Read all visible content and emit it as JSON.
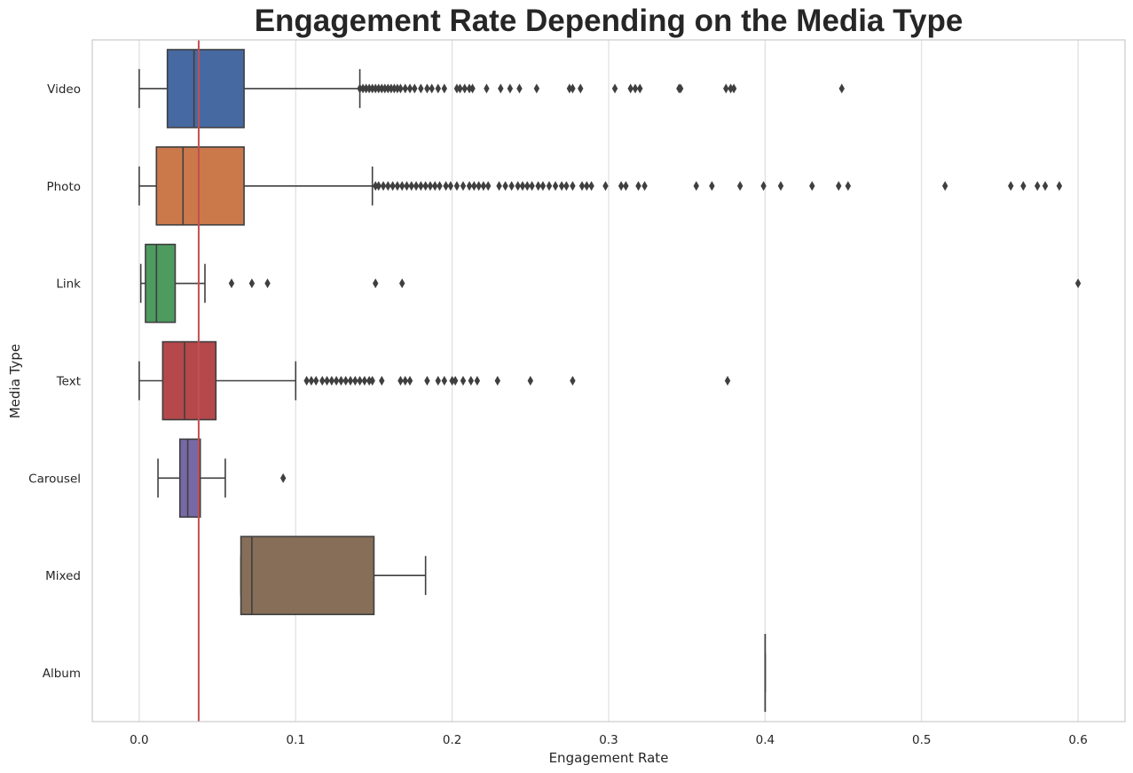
{
  "chart_data": {
    "type": "boxplot",
    "orientation": "horizontal",
    "title": "Engagement Rate Depending on the Media Type",
    "xlabel": "Engagement Rate",
    "ylabel": "Media Type",
    "xlim": [
      -0.03,
      0.63
    ],
    "xticks": [
      0.0,
      0.1,
      0.2,
      0.3,
      0.4,
      0.5,
      0.6
    ],
    "xtick_labels": [
      "0.0",
      "0.1",
      "0.2",
      "0.3",
      "0.4",
      "0.5",
      "0.6"
    ],
    "grid": "vertical",
    "reference_line": {
      "x": 0.038,
      "color": "#c44e52"
    },
    "categories": [
      "Video",
      "Photo",
      "Link",
      "Text",
      "Carousel",
      "Mixed",
      "Album"
    ],
    "series": [
      {
        "category": "Video",
        "color": "#4c72b0",
        "whisker_low": 0.0,
        "q1": 0.018,
        "median": 0.035,
        "q3": 0.067,
        "whisker_high": 0.141,
        "outliers": [
          0.141,
          0.143,
          0.145,
          0.147,
          0.149,
          0.151,
          0.153,
          0.155,
          0.157,
          0.159,
          0.161,
          0.163,
          0.165,
          0.167,
          0.17,
          0.173,
          0.176,
          0.18,
          0.184,
          0.187,
          0.191,
          0.195,
          0.203,
          0.205,
          0.208,
          0.211,
          0.213,
          0.222,
          0.231,
          0.237,
          0.243,
          0.254,
          0.275,
          0.277,
          0.282,
          0.304,
          0.314,
          0.317,
          0.32,
          0.345,
          0.346,
          0.375,
          0.378,
          0.38,
          0.449
        ]
      },
      {
        "category": "Photo",
        "color": "#dd8452",
        "whisker_low": 0.0,
        "q1": 0.011,
        "median": 0.028,
        "q3": 0.067,
        "whisker_high": 0.149,
        "outliers": [
          0.151,
          0.153,
          0.156,
          0.159,
          0.162,
          0.165,
          0.168,
          0.171,
          0.174,
          0.177,
          0.18,
          0.183,
          0.186,
          0.189,
          0.192,
          0.196,
          0.199,
          0.203,
          0.207,
          0.211,
          0.214,
          0.217,
          0.22,
          0.223,
          0.23,
          0.234,
          0.238,
          0.242,
          0.245,
          0.248,
          0.251,
          0.255,
          0.258,
          0.262,
          0.266,
          0.27,
          0.273,
          0.277,
          0.283,
          0.286,
          0.289,
          0.298,
          0.308,
          0.311,
          0.319,
          0.323,
          0.356,
          0.366,
          0.384,
          0.399,
          0.41,
          0.43,
          0.447,
          0.453,
          0.515,
          0.557,
          0.565,
          0.574,
          0.579,
          0.588
        ]
      },
      {
        "category": "Link",
        "color": "#55a868",
        "whisker_low": 0.001,
        "q1": 0.004,
        "median": 0.011,
        "q3": 0.023,
        "whisker_high": 0.042,
        "outliers": [
          0.059,
          0.072,
          0.082,
          0.151,
          0.168,
          0.6
        ]
      },
      {
        "category": "Text",
        "color": "#c44e52",
        "whisker_low": 0.0,
        "q1": 0.015,
        "median": 0.029,
        "q3": 0.049,
        "whisker_high": 0.1,
        "outliers": [
          0.107,
          0.11,
          0.113,
          0.117,
          0.12,
          0.123,
          0.126,
          0.129,
          0.132,
          0.135,
          0.138,
          0.141,
          0.144,
          0.147,
          0.149,
          0.155,
          0.167,
          0.17,
          0.173,
          0.184,
          0.191,
          0.195,
          0.2,
          0.202,
          0.207,
          0.212,
          0.216,
          0.229,
          0.25,
          0.277,
          0.376
        ]
      },
      {
        "category": "Carousel",
        "color": "#8172b3",
        "whisker_low": 0.012,
        "q1": 0.026,
        "median": 0.031,
        "q3": 0.039,
        "whisker_high": 0.055,
        "outliers": [
          0.092
        ]
      },
      {
        "category": "Mixed",
        "color": "#937860",
        "whisker_low": 0.065,
        "q1": 0.065,
        "median": 0.072,
        "q3": 0.15,
        "whisker_high": 0.183,
        "outliers": []
      },
      {
        "category": "Album",
        "color": "#da8bc3",
        "whisker_low": 0.4,
        "q1": 0.4,
        "median": 0.4,
        "q3": 0.4,
        "whisker_high": 0.4,
        "outliers": []
      }
    ]
  }
}
